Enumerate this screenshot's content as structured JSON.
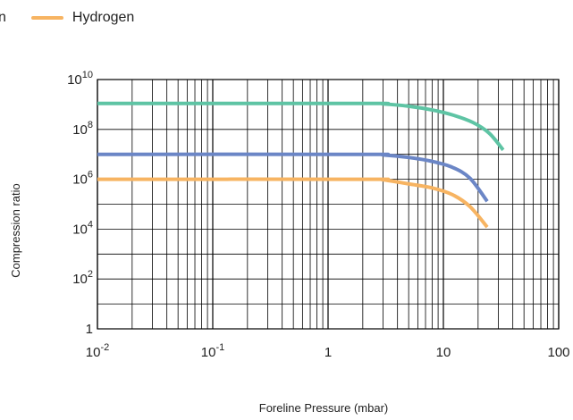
{
  "chart_data": {
    "type": "line",
    "title": "",
    "xlabel": "Foreline Pressure (mbar)",
    "ylabel": "Compression ratio",
    "x_scale": "log",
    "y_scale": "log",
    "xlim": [
      0.01,
      100
    ],
    "ylim": [
      1,
      10000000000
    ],
    "x_ticks": [
      {
        "value": 0.01,
        "base": "10",
        "exp": "-2"
      },
      {
        "value": 0.1,
        "base": "10",
        "exp": "-1"
      },
      {
        "value": 1,
        "base": "1",
        "exp": ""
      },
      {
        "value": 10,
        "base": "10",
        "exp": ""
      },
      {
        "value": 100,
        "base": "100",
        "exp": ""
      }
    ],
    "y_ticks": [
      {
        "value": 1,
        "base": "1",
        "exp": ""
      },
      {
        "value": 100,
        "base": "10",
        "exp": "2"
      },
      {
        "value": 10000,
        "base": "10",
        "exp": "4"
      },
      {
        "value": 1000000,
        "base": "10",
        "exp": "6"
      },
      {
        "value": 100000000,
        "base": "10",
        "exp": "8"
      },
      {
        "value": 10000000000,
        "base": "10",
        "exp": "10"
      }
    ],
    "grid": true,
    "legend_position": "top-left",
    "series": [
      {
        "name": "",
        "color": "#5ec4a4",
        "points": [
          [
            0.01,
            1100000000.0
          ],
          [
            2,
            1100000000.0
          ],
          [
            3,
            1050000000.0
          ],
          [
            5,
            850000000.0
          ],
          [
            8,
            600000000.0
          ],
          [
            12,
            380000000.0
          ],
          [
            18,
            190000000.0
          ],
          [
            25,
            70000000.0
          ],
          [
            33,
            15000000.0
          ]
        ]
      },
      {
        "name": "",
        "color": "#6b86c6",
        "points": [
          [
            0.01,
            10000000.0
          ],
          [
            2,
            10000000.0
          ],
          [
            3,
            9500000.0
          ],
          [
            5,
            7500000.0
          ],
          [
            8,
            5200000.0
          ],
          [
            12,
            3000000.0
          ],
          [
            17,
            1100000.0
          ],
          [
            24,
            130000.0
          ]
        ]
      },
      {
        "name": "Hydrogen",
        "color": "#f7b462",
        "points": [
          [
            0.01,
            1000000.0
          ],
          [
            2,
            1000000.0
          ],
          [
            3,
            950000.0
          ],
          [
            5,
            650000.0
          ],
          [
            8,
            450000.0
          ],
          [
            12,
            240000.0
          ],
          [
            17,
            80000.0
          ],
          [
            24,
            12000.0
          ]
        ]
      }
    ],
    "legend_items": [
      {
        "label": "n",
        "color": ""
      },
      {
        "label": "Hydrogen",
        "color": "#f7b462"
      }
    ]
  }
}
